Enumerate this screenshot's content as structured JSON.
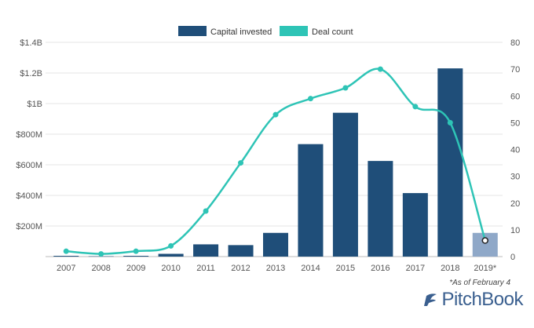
{
  "chart_data": {
    "type": "bar+line",
    "categories": [
      "2007",
      "2008",
      "2009",
      "2010",
      "2011",
      "2012",
      "2013",
      "2014",
      "2015",
      "2016",
      "2017",
      "2018",
      "2019*"
    ],
    "series": [
      {
        "name": "Capital invested",
        "kind": "bar",
        "axis": "left",
        "unit": "$",
        "values": [
          5,
          2,
          5,
          18,
          80,
          75,
          155,
          735,
          940,
          625,
          415,
          1230,
          155
        ],
        "color": "#1f4e79",
        "highlight_color": "#8fa8c8",
        "highlight_index": 12
      },
      {
        "name": "Deal count",
        "kind": "line",
        "axis": "right",
        "values": [
          2,
          1,
          2,
          4,
          17,
          35,
          53,
          59,
          63,
          70,
          56,
          50,
          6
        ],
        "color": "#2ec4b6"
      }
    ],
    "y_left": {
      "ticks": [
        0,
        200,
        400,
        600,
        800,
        1000,
        1200,
        1400
      ],
      "tick_labels": [
        "",
        "$200M",
        "$400M",
        "$600M",
        "$800M",
        "$1B",
        "$1.2B",
        "$1.4B"
      ],
      "ylim": [
        0,
        1400
      ]
    },
    "y_right": {
      "ticks": [
        0,
        10,
        20,
        30,
        40,
        50,
        60,
        70,
        80
      ],
      "tick_labels": [
        "0",
        "10",
        "20",
        "30",
        "40",
        "50",
        "60",
        "70",
        "80"
      ],
      "ylim": [
        0,
        80
      ]
    },
    "legend": {
      "position": "top-center"
    },
    "grid": true
  },
  "footnote": "*As of February 4",
  "brand": {
    "name": "PitchBook",
    "logo_color": "#3a5f8f"
  }
}
